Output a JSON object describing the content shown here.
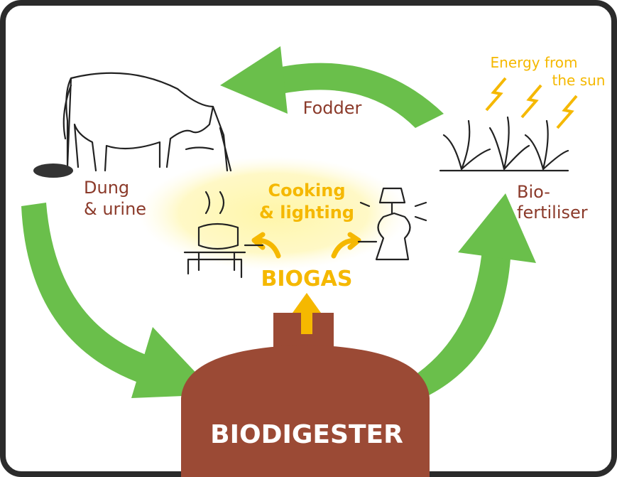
{
  "labels": {
    "energy": [
      "Energy from",
      "the sun"
    ],
    "fodder": [
      "Fodder"
    ],
    "dung": [
      "Dung",
      "& urine"
    ],
    "cooking": [
      "Cooking",
      "& lighting"
    ],
    "fertiliser": [
      "Bio-",
      "fertiliser"
    ],
    "biogas": [
      "BIOGAS"
    ],
    "biodigester": [
      "BIODIGESTER"
    ]
  }
}
